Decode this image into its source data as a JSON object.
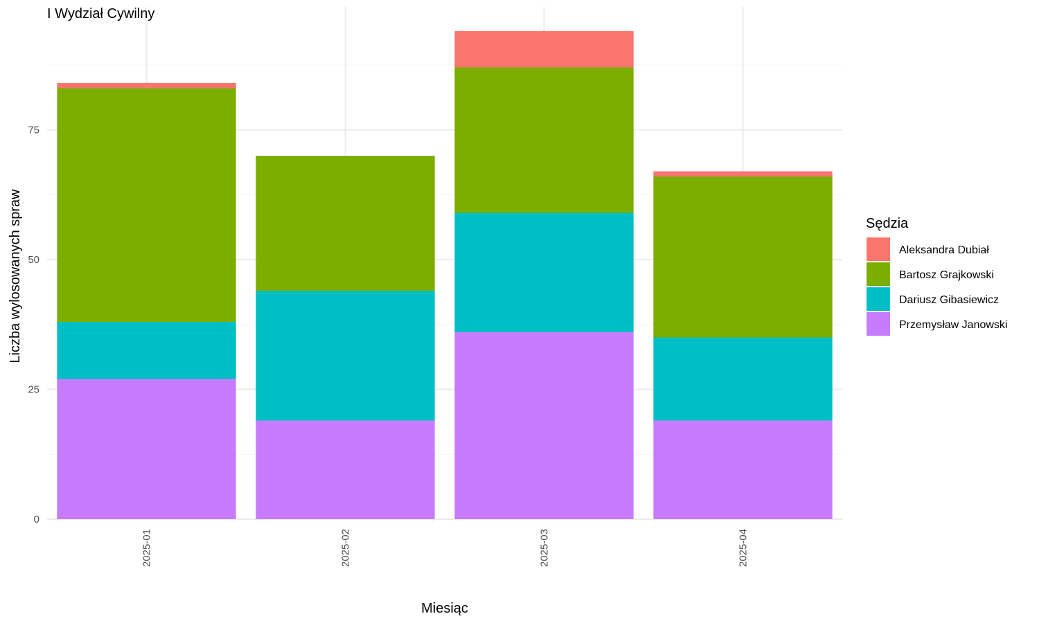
{
  "chart_data": {
    "type": "bar",
    "stacked": true,
    "title": "I Wydział Cywilny",
    "xlabel": "Miesiąc",
    "ylabel": "Liczba wylosowanych spraw",
    "categories": [
      "2025-01",
      "2025-02",
      "2025-03",
      "2025-04"
    ],
    "ylim": [
      0,
      98
    ],
    "yticks": [
      0,
      25,
      50,
      75
    ],
    "grid": true,
    "legend_title": "Sędzia",
    "legend_position": "right",
    "series": [
      {
        "name": "Przemysław Janowski",
        "color": "#C77CFF",
        "values": [
          27,
          19,
          36,
          19
        ]
      },
      {
        "name": "Dariusz Gibasiewicz",
        "color": "#00BFC4",
        "values": [
          11,
          25,
          23,
          16
        ]
      },
      {
        "name": "Bartosz Grajkowski",
        "color": "#7CAE00",
        "values": [
          45,
          26,
          28,
          31
        ]
      },
      {
        "name": "Aleksandra Dubiał",
        "color": "#F8766D",
        "values": [
          1,
          0,
          7,
          1
        ]
      }
    ],
    "legend_order": [
      "Aleksandra Dubiał",
      "Bartosz Grajkowski",
      "Dariusz Gibasiewicz",
      "Przemysław Janowski"
    ]
  }
}
